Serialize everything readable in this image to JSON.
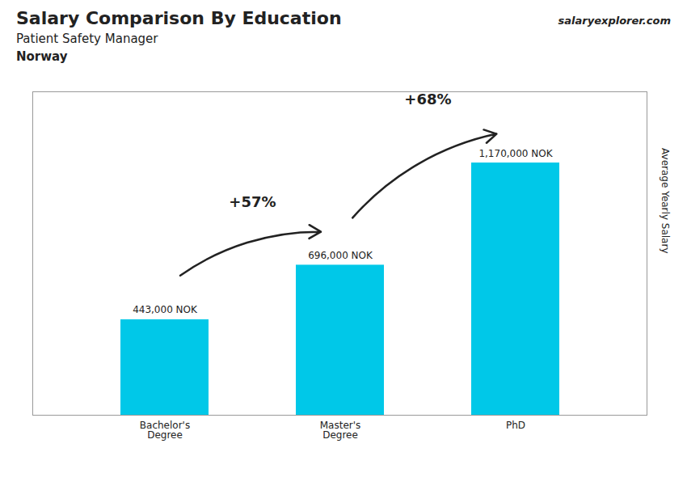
{
  "chart_data": {
    "type": "bar",
    "title": "Salary Comparison By Education",
    "subtitle": "Patient Safety Manager",
    "categories": [
      "Bachelor's\nDegree",
      "Master's\nDegree",
      "PhD"
    ],
    "values": [
      443000,
      696000,
      1170000
    ],
    "value_labels": [
      "443,000 NOK",
      "696,000 NOK",
      "1,170,000 NOK"
    ],
    "data_labels": true,
    "color": "#00c8e8",
    "ylabel": "Average Yearly Salary",
    "ylim": [
      0,
      1500000
    ],
    "yticks": [],
    "tick_labels": "x",
    "grid": false,
    "annotations": [
      {
        "text": "Norway"
      },
      {
        "text": "salaryexplorer.com"
      },
      {
        "text": "+57%",
        "from": "Bachelor's\nDegree",
        "to": "Master's\nDegree"
      },
      {
        "text": "+68%",
        "from": "Master's\nDegree",
        "to": "PhD"
      }
    ]
  }
}
